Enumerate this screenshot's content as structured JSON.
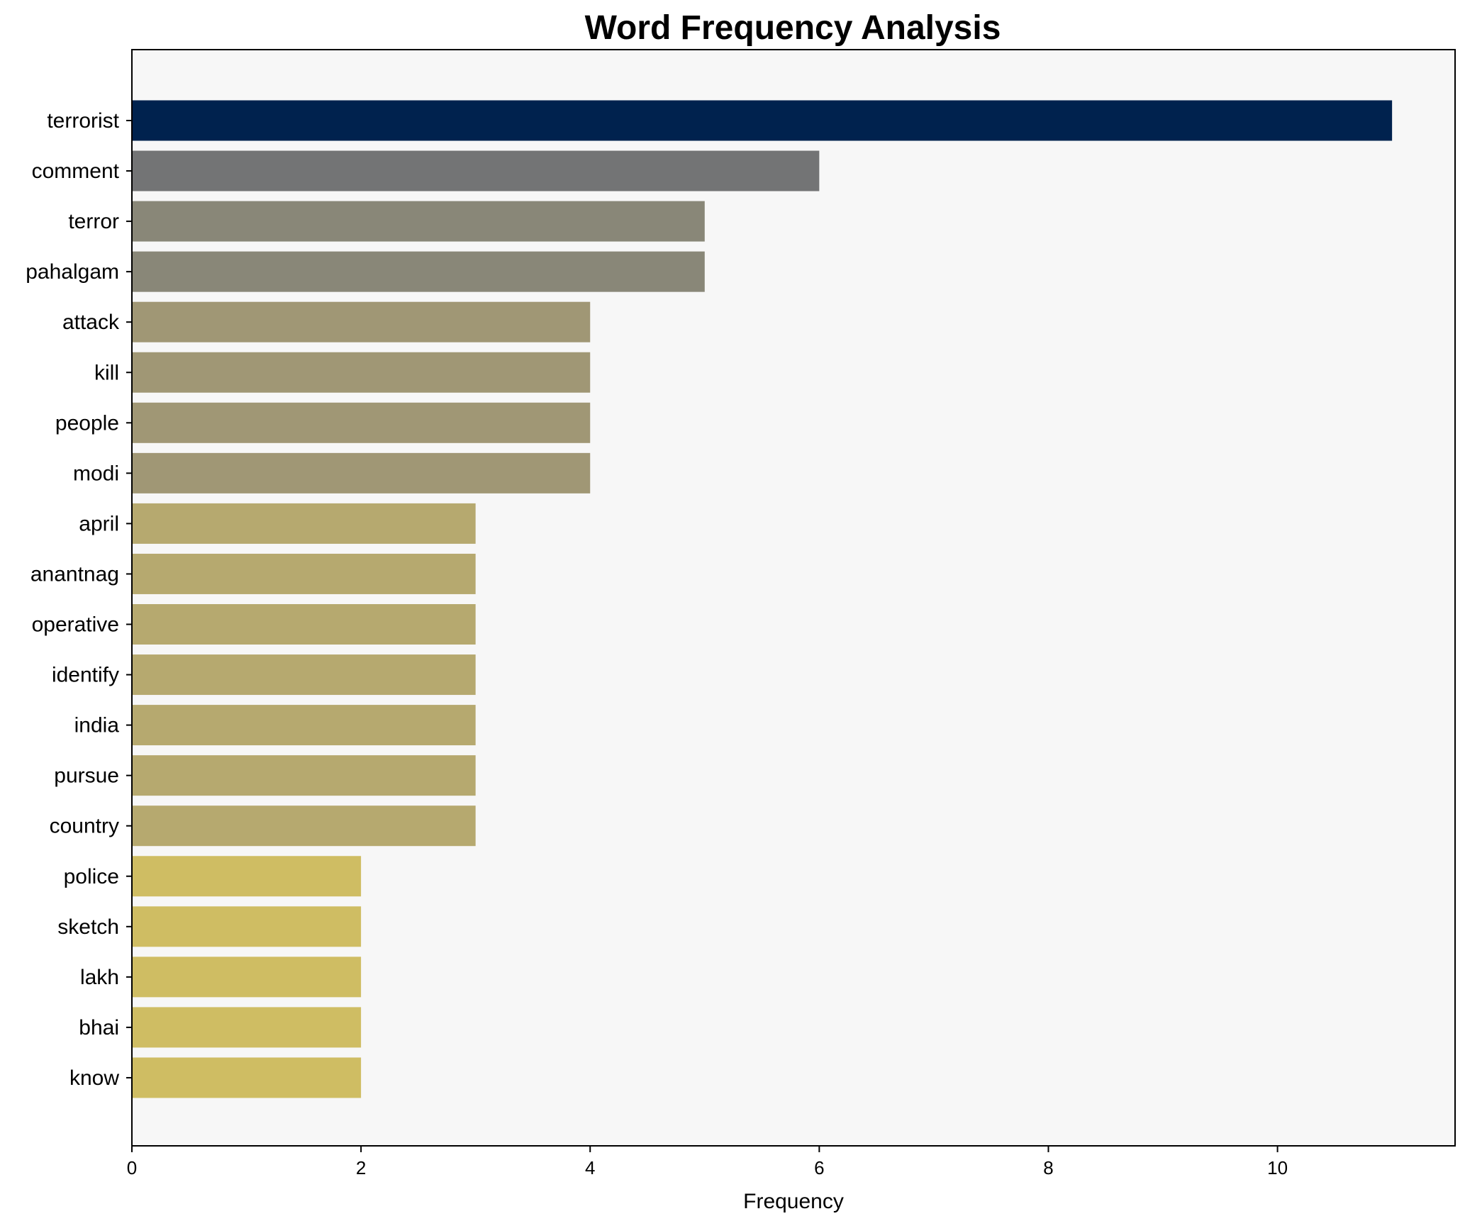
{
  "chart_data": {
    "type": "bar",
    "orientation": "horizontal",
    "title": "Word Frequency Analysis",
    "xlabel": "Frequency",
    "ylabel": "",
    "xlim": [
      0,
      11.55
    ],
    "xticks": [
      0,
      2,
      4,
      6,
      8,
      10
    ],
    "grid": false,
    "legend": "none",
    "categories": [
      "terrorist",
      "comment",
      "terror",
      "pahalgam",
      "attack",
      "kill",
      "people",
      "modi",
      "april",
      "anantnag",
      "operative",
      "identify",
      "india",
      "pursue",
      "country",
      "police",
      "sketch",
      "lakh",
      "bhai",
      "know"
    ],
    "values": [
      11,
      6,
      5,
      5,
      4,
      4,
      4,
      4,
      3,
      3,
      3,
      3,
      3,
      3,
      3,
      2,
      2,
      2,
      2,
      2
    ],
    "colors": [
      "#00224e",
      "#737475",
      "#898778",
      "#898778",
      "#a09775",
      "#a09775",
      "#a09775",
      "#a09775",
      "#b6a96f",
      "#b6a96f",
      "#b6a96f",
      "#b6a96f",
      "#b6a96f",
      "#b6a96f",
      "#b6a96f",
      "#cfbd63",
      "#cfbd63",
      "#cfbd63",
      "#cfbd63",
      "#cfbd63"
    ],
    "plot_background": "#f7f7f7"
  }
}
